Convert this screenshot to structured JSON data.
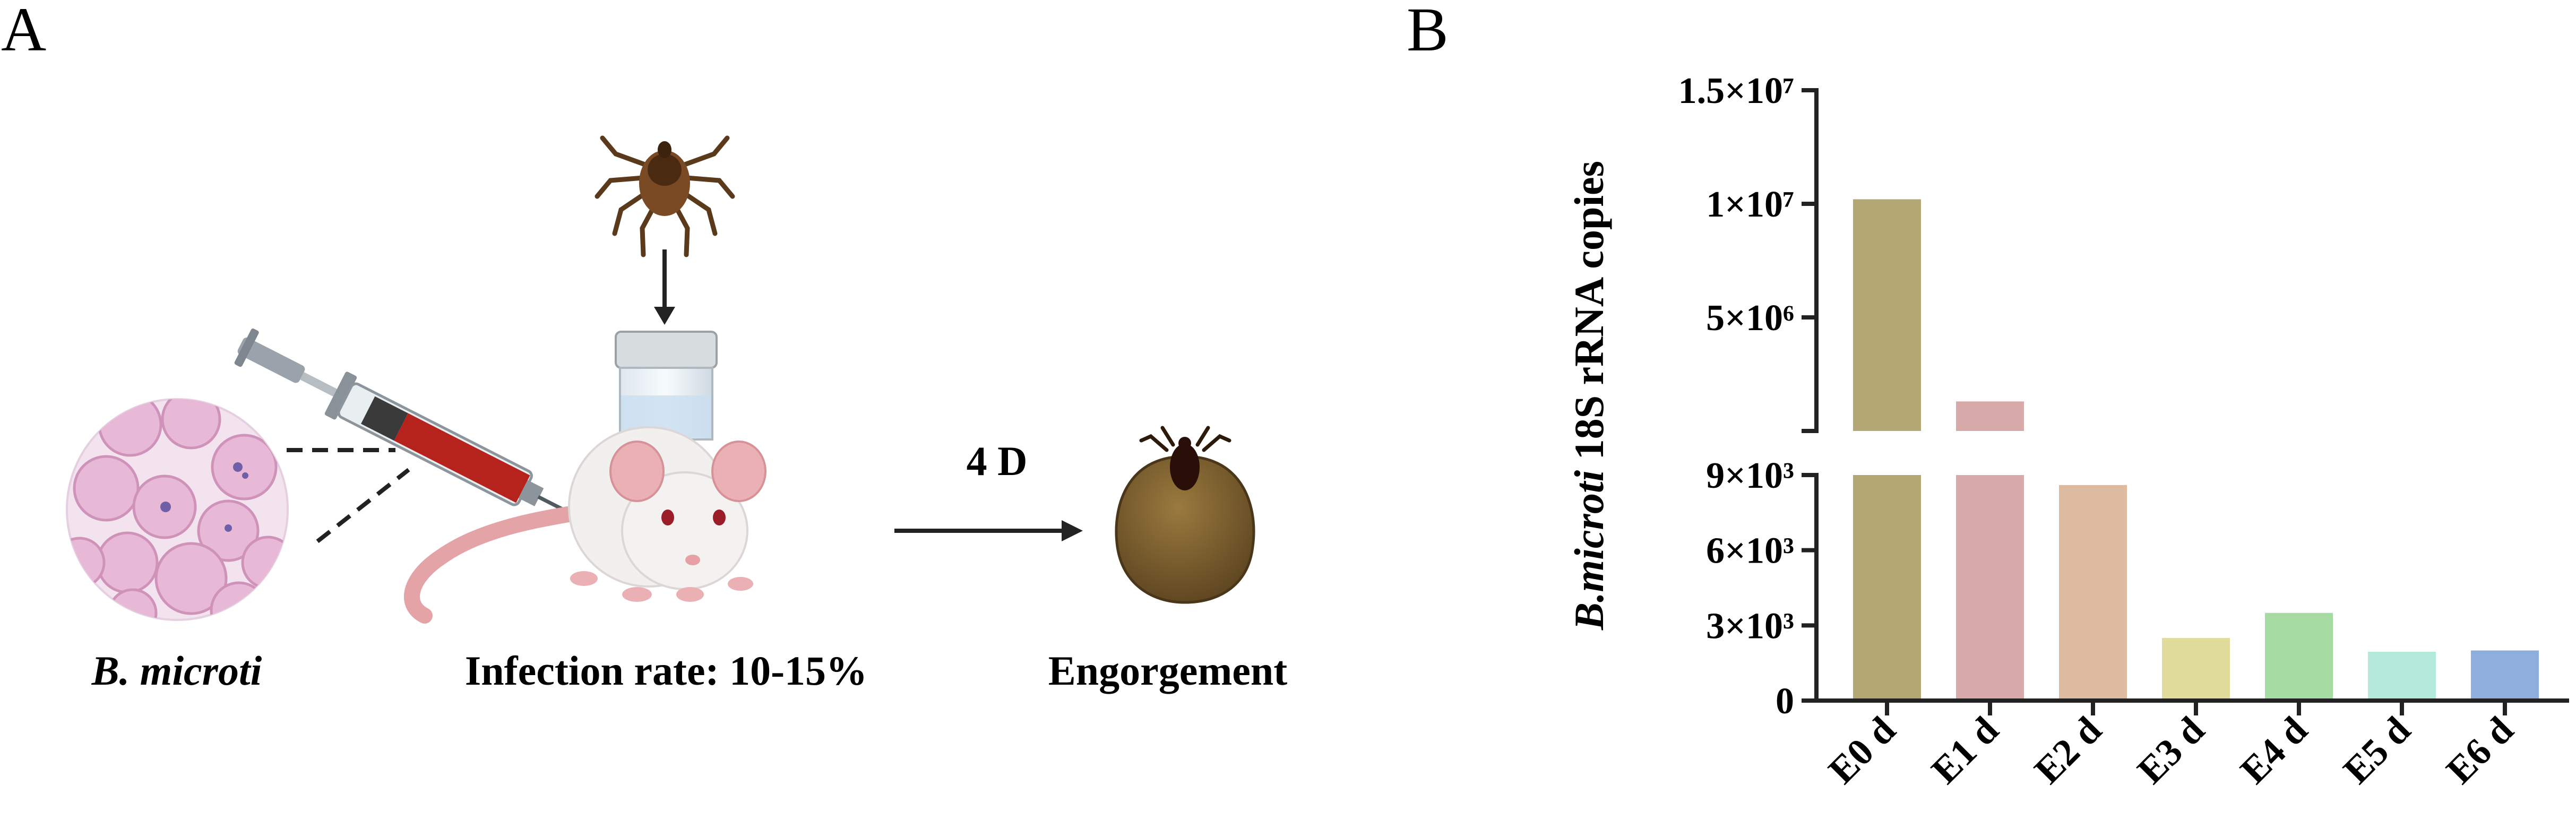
{
  "panels": {
    "a_letter": "A",
    "b_letter": "B"
  },
  "panel_a": {
    "captions": {
      "parasite_italic": "B. microti",
      "infection_rate": "Infection rate: 10-15%",
      "engorgement": "Engorgement"
    },
    "step_label": "4 D",
    "icons": [
      "blood-smear-icon",
      "syringe-icon",
      "tick-icon",
      "container-icon",
      "mouse-icon",
      "engorged-tick-icon"
    ],
    "colors": {
      "rbc": "#e7b9d6",
      "smear_bg": "#f3e3ef",
      "syringe_blood": "#b6231c",
      "tick_body": "#7a4a24",
      "engorged_body": "#7b5e2c",
      "mouse_body": "#f2efef",
      "mouse_ear": "#eab0b4"
    }
  },
  "chart_data": {
    "type": "bar",
    "categories": [
      "E0 d",
      "E1 d",
      "E2 d",
      "E3 d",
      "E4 d",
      "E5 d",
      "E6 d"
    ],
    "values": [
      10200000,
      1300000,
      8600,
      2500,
      3500,
      1950,
      2000
    ],
    "ylabel": {
      "italic_part": "B.microti",
      "rest": " 18S rRNA copies"
    },
    "y_axis": {
      "broken": true,
      "lower_range": [
        0,
        9000
      ],
      "upper_range": [
        0,
        15000000
      ],
      "lower_ticks": [
        {
          "v": 0,
          "label": "0"
        },
        {
          "v": 3000,
          "label": "3×10³"
        },
        {
          "v": 6000,
          "label": "6×10³"
        },
        {
          "v": 9000,
          "label": "9×10³"
        }
      ],
      "upper_ticks": [
        {
          "v": 5000000,
          "label": "5×10⁶"
        },
        {
          "v": 10000000,
          "label": "1×10⁷"
        },
        {
          "v": 15000000,
          "label": "1.5×10⁷"
        }
      ]
    },
    "colors": [
      "#b3a774",
      "#d8a9a9",
      "#dcbba0",
      "#dfdc9c",
      "#a6dba3",
      "#b3ead9",
      "#8eaedd"
    ],
    "grid": false
  }
}
